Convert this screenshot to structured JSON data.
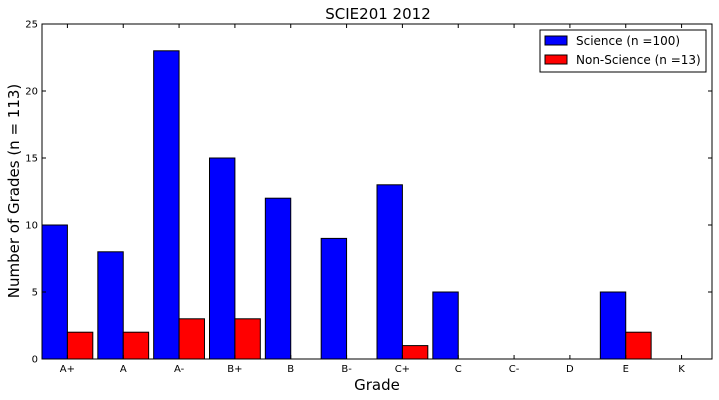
{
  "chart_data": {
    "type": "bar",
    "title": "SCIE201 2012",
    "xlabel": "Grade",
    "ylabel": "Number of Grades (n = 113)",
    "categories": [
      "A+",
      "A",
      "A-",
      "B+",
      "B",
      "B-",
      "C+",
      "C",
      "C-",
      "D",
      "E",
      "K"
    ],
    "series": [
      {
        "name": "Science (n =100)",
        "color": "#0000ff",
        "values": [
          10,
          8,
          23,
          15,
          12,
          9,
          13,
          5,
          0,
          0,
          5,
          0
        ]
      },
      {
        "name": "Non-Science (n =13)",
        "color": "#ff0000",
        "values": [
          2,
          2,
          3,
          3,
          0,
          0,
          1,
          0,
          0,
          0,
          2,
          0
        ]
      }
    ],
    "ylim": [
      0,
      25
    ],
    "yticks": [
      0,
      5,
      10,
      15,
      20,
      25
    ],
    "grid": false,
    "legend_position": "top-right"
  }
}
